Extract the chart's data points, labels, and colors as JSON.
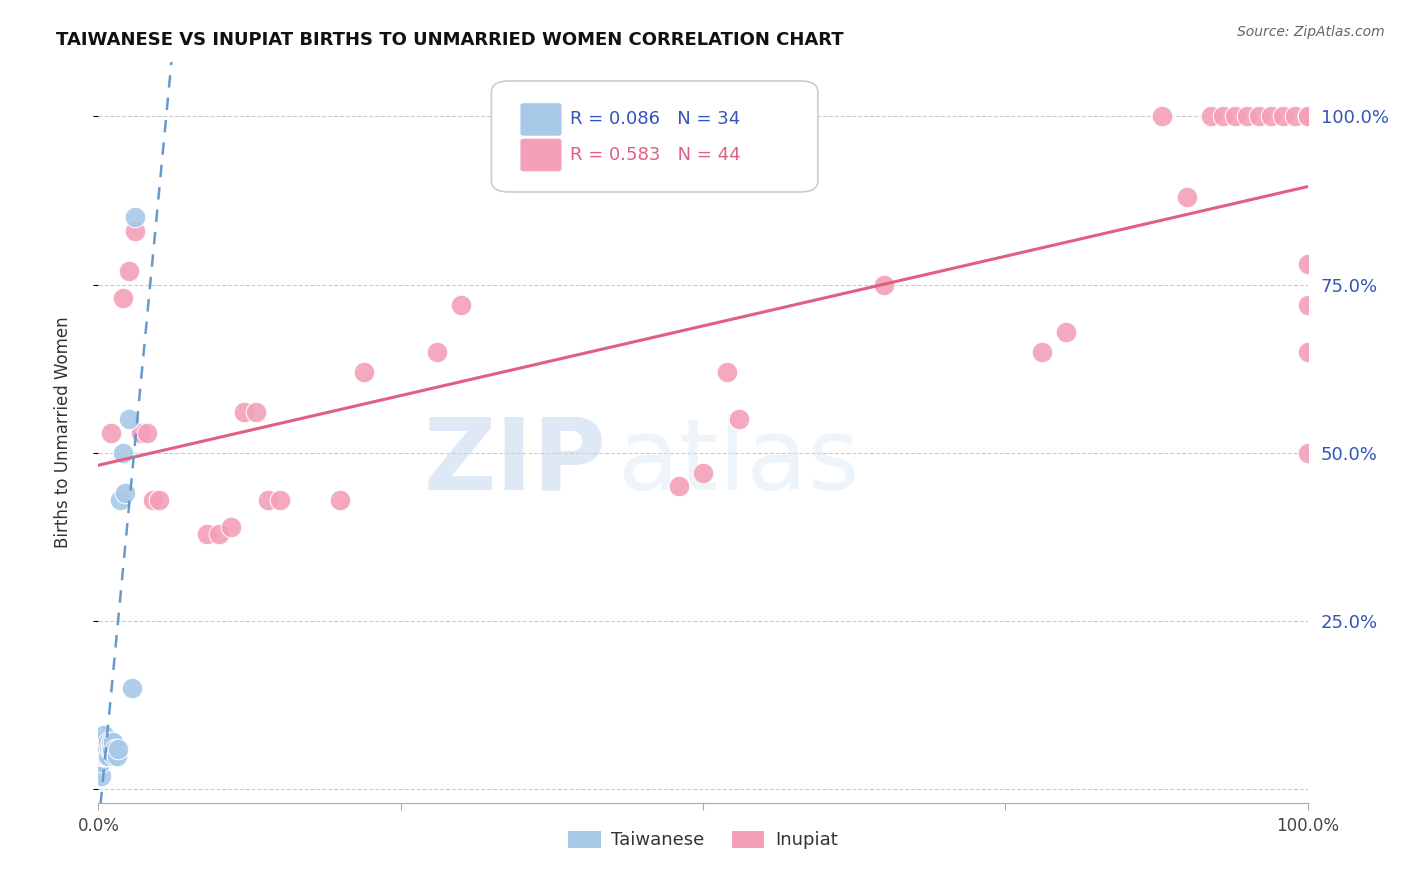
{
  "title": "TAIWANESE VS INUPIAT BIRTHS TO UNMARRIED WOMEN CORRELATION CHART",
  "source": "Source: ZipAtlas.com",
  "ylabel": "Births to Unmarried Women",
  "xlim": [
    0.0,
    1.0
  ],
  "ylim": [
    -0.02,
    1.08
  ],
  "ytick_values": [
    0.0,
    0.25,
    0.5,
    0.75,
    1.0
  ],
  "right_ytick_labels": [
    "100.0%",
    "75.0%",
    "50.0%",
    "25.0%"
  ],
  "right_ytick_values": [
    1.0,
    0.75,
    0.5,
    0.25
  ],
  "taiwanese_color": "#a8c8e8",
  "inupiat_color": "#f4a0b8",
  "trendline_taiwanese_color": "#6699cc",
  "trendline_inupiat_color": "#e06080",
  "watermark_zip": "ZIP",
  "watermark_atlas": "atlas",
  "background_color": "#ffffff",
  "grid_color": "#cccccc",
  "taiwanese_x": [
    0.001,
    0.002,
    0.002,
    0.003,
    0.003,
    0.003,
    0.004,
    0.004,
    0.004,
    0.005,
    0.005,
    0.005,
    0.005,
    0.006,
    0.006,
    0.007,
    0.007,
    0.008,
    0.008,
    0.009,
    0.01,
    0.01,
    0.011,
    0.012,
    0.013,
    0.014,
    0.015,
    0.016,
    0.018,
    0.02,
    0.022,
    0.025,
    0.028,
    0.03
  ],
  "taiwanese_y": [
    0.05,
    0.02,
    0.04,
    0.05,
    0.06,
    0.07,
    0.05,
    0.06,
    0.07,
    0.05,
    0.06,
    0.07,
    0.08,
    0.05,
    0.06,
    0.05,
    0.06,
    0.05,
    0.07,
    0.06,
    0.06,
    0.07,
    0.06,
    0.07,
    0.05,
    0.06,
    0.05,
    0.06,
    0.43,
    0.5,
    0.44,
    0.55,
    0.15,
    0.85
  ],
  "inupiat_x": [
    0.01,
    0.02,
    0.025,
    0.03,
    0.035,
    0.04,
    0.045,
    0.05,
    0.09,
    0.1,
    0.11,
    0.12,
    0.13,
    0.14,
    0.15,
    0.2,
    0.22,
    0.28,
    0.3,
    0.48,
    0.5,
    0.52,
    0.53,
    0.65,
    0.78,
    0.8,
    0.88,
    0.9,
    0.92,
    0.93,
    0.94,
    0.95,
    0.96,
    0.97,
    0.98,
    0.99,
    1.0,
    1.0,
    1.0,
    1.0,
    1.0,
    1.0,
    1.0,
    1.0
  ],
  "inupiat_y": [
    0.53,
    0.73,
    0.77,
    0.83,
    0.53,
    0.53,
    0.43,
    0.43,
    0.38,
    0.38,
    0.39,
    0.56,
    0.56,
    0.43,
    0.43,
    0.43,
    0.62,
    0.65,
    0.72,
    0.45,
    0.47,
    0.62,
    0.55,
    0.75,
    0.65,
    0.68,
    1.0,
    0.88,
    1.0,
    1.0,
    1.0,
    1.0,
    1.0,
    1.0,
    1.0,
    1.0,
    1.0,
    1.0,
    0.65,
    0.72,
    1.0,
    0.78,
    0.5,
    1.0
  ]
}
